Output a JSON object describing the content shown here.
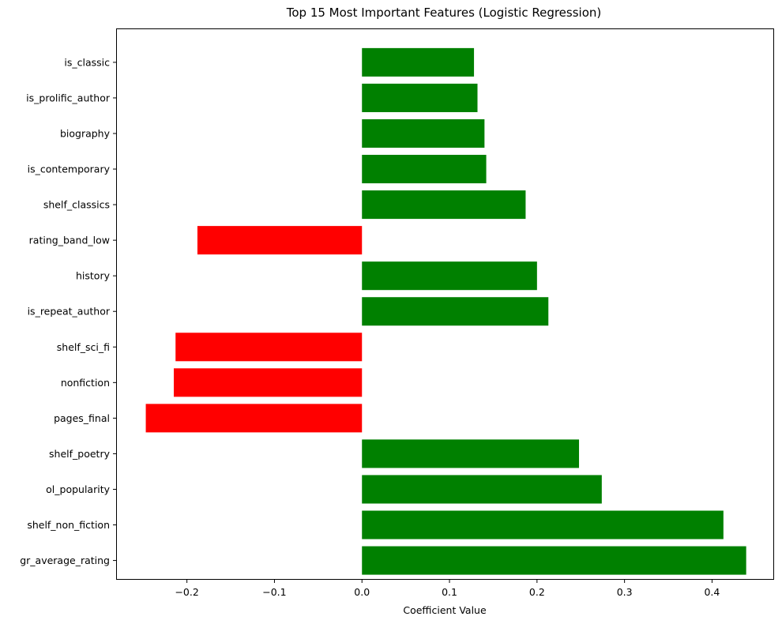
{
  "chart_data": {
    "type": "bar",
    "orientation": "horizontal",
    "title": "Top 15 Most Important Features (Logistic Regression)",
    "xlabel": "Coefficient Value",
    "ylabel": "",
    "xlim": [
      -0.28,
      0.47
    ],
    "xticks": [
      -0.2,
      -0.1,
      0.0,
      0.1,
      0.2,
      0.3,
      0.4
    ],
    "xtick_labels": [
      "−0.2",
      "−0.1",
      "0.0",
      "0.1",
      "0.2",
      "0.3",
      "0.4"
    ],
    "grid": false,
    "positive_color": "#008000",
    "negative_color": "#ff0000",
    "categories": [
      "is_classic",
      "is_prolific_author",
      "biography",
      "is_contemporary",
      "shelf_classics",
      "rating_band_low",
      "history",
      "is_repeat_author",
      "shelf_sci_fi",
      "nonfiction",
      "pages_final",
      "shelf_poetry",
      "ol_popularity",
      "shelf_non_fiction",
      "gr_average_rating"
    ],
    "values": [
      0.128,
      0.132,
      0.14,
      0.142,
      0.187,
      -0.188,
      0.2,
      0.213,
      -0.213,
      -0.215,
      -0.247,
      0.248,
      0.274,
      0.413,
      0.439
    ]
  }
}
